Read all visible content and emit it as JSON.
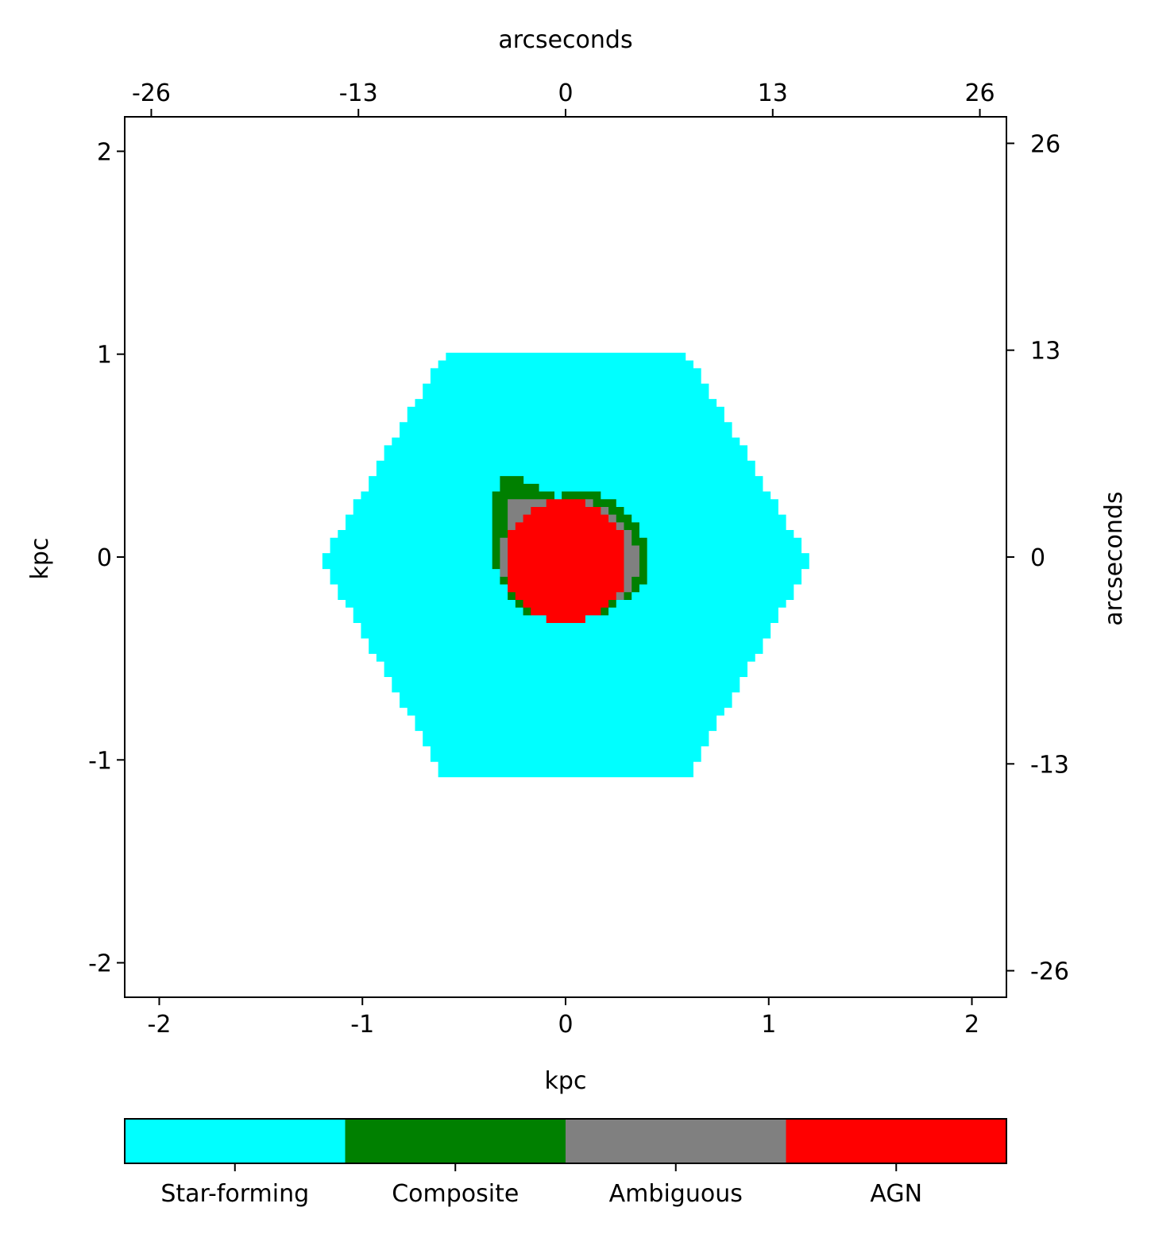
{
  "chart_data": {
    "type": "heatmap",
    "title": "",
    "xlabel": "kpc",
    "ylabel": "kpc",
    "xlabel_top": "arcseconds",
    "ylabel_right": "arcseconds",
    "xlim": [
      -2.17,
      2.17
    ],
    "ylim": [
      -2.17,
      2.17
    ],
    "xticks": [
      -2,
      -1,
      0,
      1,
      2
    ],
    "xtick_labels": [
      "-2",
      "-1",
      "0",
      "1",
      "2"
    ],
    "yticks": [
      -2,
      -1,
      0,
      1,
      2
    ],
    "ytick_labels": [
      "-2",
      "-1",
      "0",
      "1",
      "2"
    ],
    "xticks_top": [
      -26,
      -13,
      0,
      13,
      26
    ],
    "xtick_labels_top": [
      "-26",
      "-13",
      "0",
      "13",
      "26"
    ],
    "yticks_right": [
      -26,
      -13,
      0,
      13,
      26
    ],
    "ytick_labels_right": [
      "-26",
      "-13",
      "0",
      "13",
      "26"
    ],
    "arcsec_per_kpc": 12.75,
    "grid": false,
    "pixel_size_kpc": 0.038,
    "categories": [
      "Star-forming",
      "Composite",
      "Ambiguous",
      "AGN"
    ],
    "colors": {
      "Star-forming": "#00ffff",
      "Composite": "#008000",
      "Ambiguous": "#808080",
      "AGN": "#ff0000"
    },
    "regions": {
      "Star-forming": {
        "shape": "hexagon",
        "center": [
          0.0,
          -0.02
        ],
        "vertices": [
          [
            -1.2,
            -0.02
          ],
          [
            -0.6,
            1.0
          ],
          [
            0.6,
            1.0
          ],
          [
            1.2,
            -0.02
          ],
          [
            0.6,
            -1.08
          ],
          [
            -0.6,
            -1.08
          ]
        ]
      },
      "Composite": {
        "shape": "blob",
        "center": [
          0.02,
          -0.02
        ],
        "outline": [
          [
            -0.36,
            0.3
          ],
          [
            -0.28,
            0.42
          ],
          [
            -0.18,
            0.36
          ],
          [
            -0.04,
            0.3
          ],
          [
            0.04,
            0.34
          ],
          [
            0.12,
            0.34
          ],
          [
            0.24,
            0.26
          ],
          [
            0.34,
            0.16
          ],
          [
            0.4,
            0.04
          ],
          [
            0.4,
            -0.1
          ],
          [
            0.3,
            -0.2
          ],
          [
            0.16,
            -0.3
          ],
          [
            -0.16,
            -0.3
          ],
          [
            -0.28,
            -0.18
          ],
          [
            -0.36,
            -0.02
          ]
        ]
      },
      "Ambiguous": {
        "shape": "blob",
        "center": [
          0.0,
          -0.02
        ],
        "outline": [
          [
            -0.28,
            0.28
          ],
          [
            0.1,
            0.28
          ],
          [
            0.28,
            0.18
          ],
          [
            0.36,
            0.02
          ],
          [
            0.34,
            -0.12
          ],
          [
            0.24,
            -0.22
          ],
          [
            0.12,
            -0.28
          ],
          [
            -0.16,
            -0.28
          ],
          [
            -0.26,
            -0.18
          ],
          [
            -0.32,
            -0.04
          ]
        ]
      },
      "AGN": {
        "shape": "disk",
        "center": [
          0.0,
          -0.02
        ],
        "radius": 0.3
      }
    },
    "colorbar": {
      "orientation": "horizontal",
      "placement": "bottom",
      "labels": [
        "Star-forming",
        "Composite",
        "Ambiguous",
        "AGN"
      ]
    }
  }
}
